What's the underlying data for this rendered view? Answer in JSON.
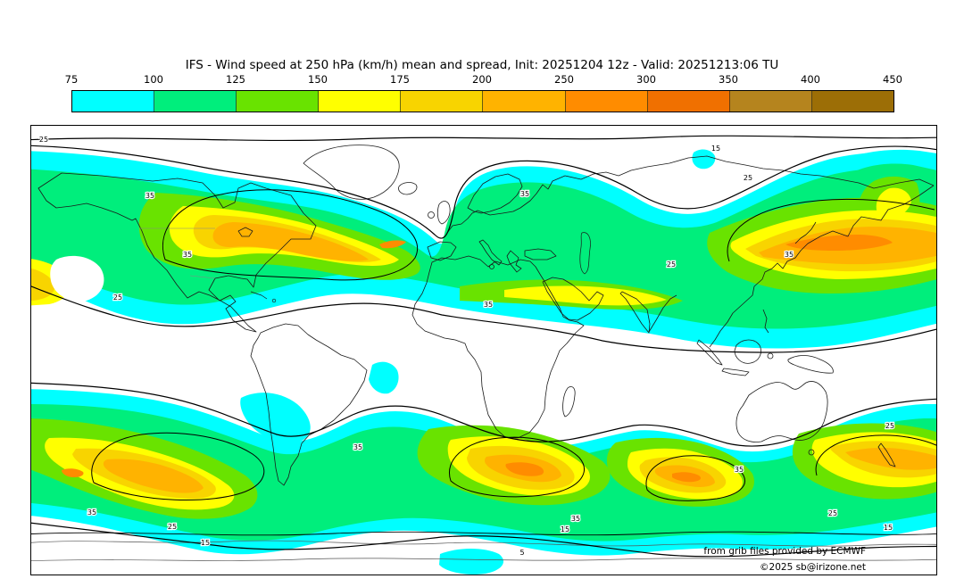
{
  "title": "IFS - Wind speed at 250 hPa (km/h) mean and spread, Init: 20251204 12z - Valid: 20251213:06 TU",
  "colorbar": {
    "unit": "km/h",
    "ticks": [
      "75",
      "100",
      "125",
      "150",
      "175",
      "200",
      "250",
      "300",
      "350",
      "400",
      "450"
    ],
    "colors": [
      "#00ffff",
      "#00ee7c",
      "#69e300",
      "#ffff00",
      "#f8d400",
      "#ffb300",
      "#ff8c00",
      "#f07000",
      "#b5841e",
      "#9c6e06"
    ]
  },
  "map": {
    "contour_label_values": {
      "l5": "5",
      "l15": "15",
      "l25": "25",
      "l35": "35"
    },
    "credits": [
      "from grib files provided by ECMWF",
      "©2025 sb@irizone.net"
    ]
  }
}
